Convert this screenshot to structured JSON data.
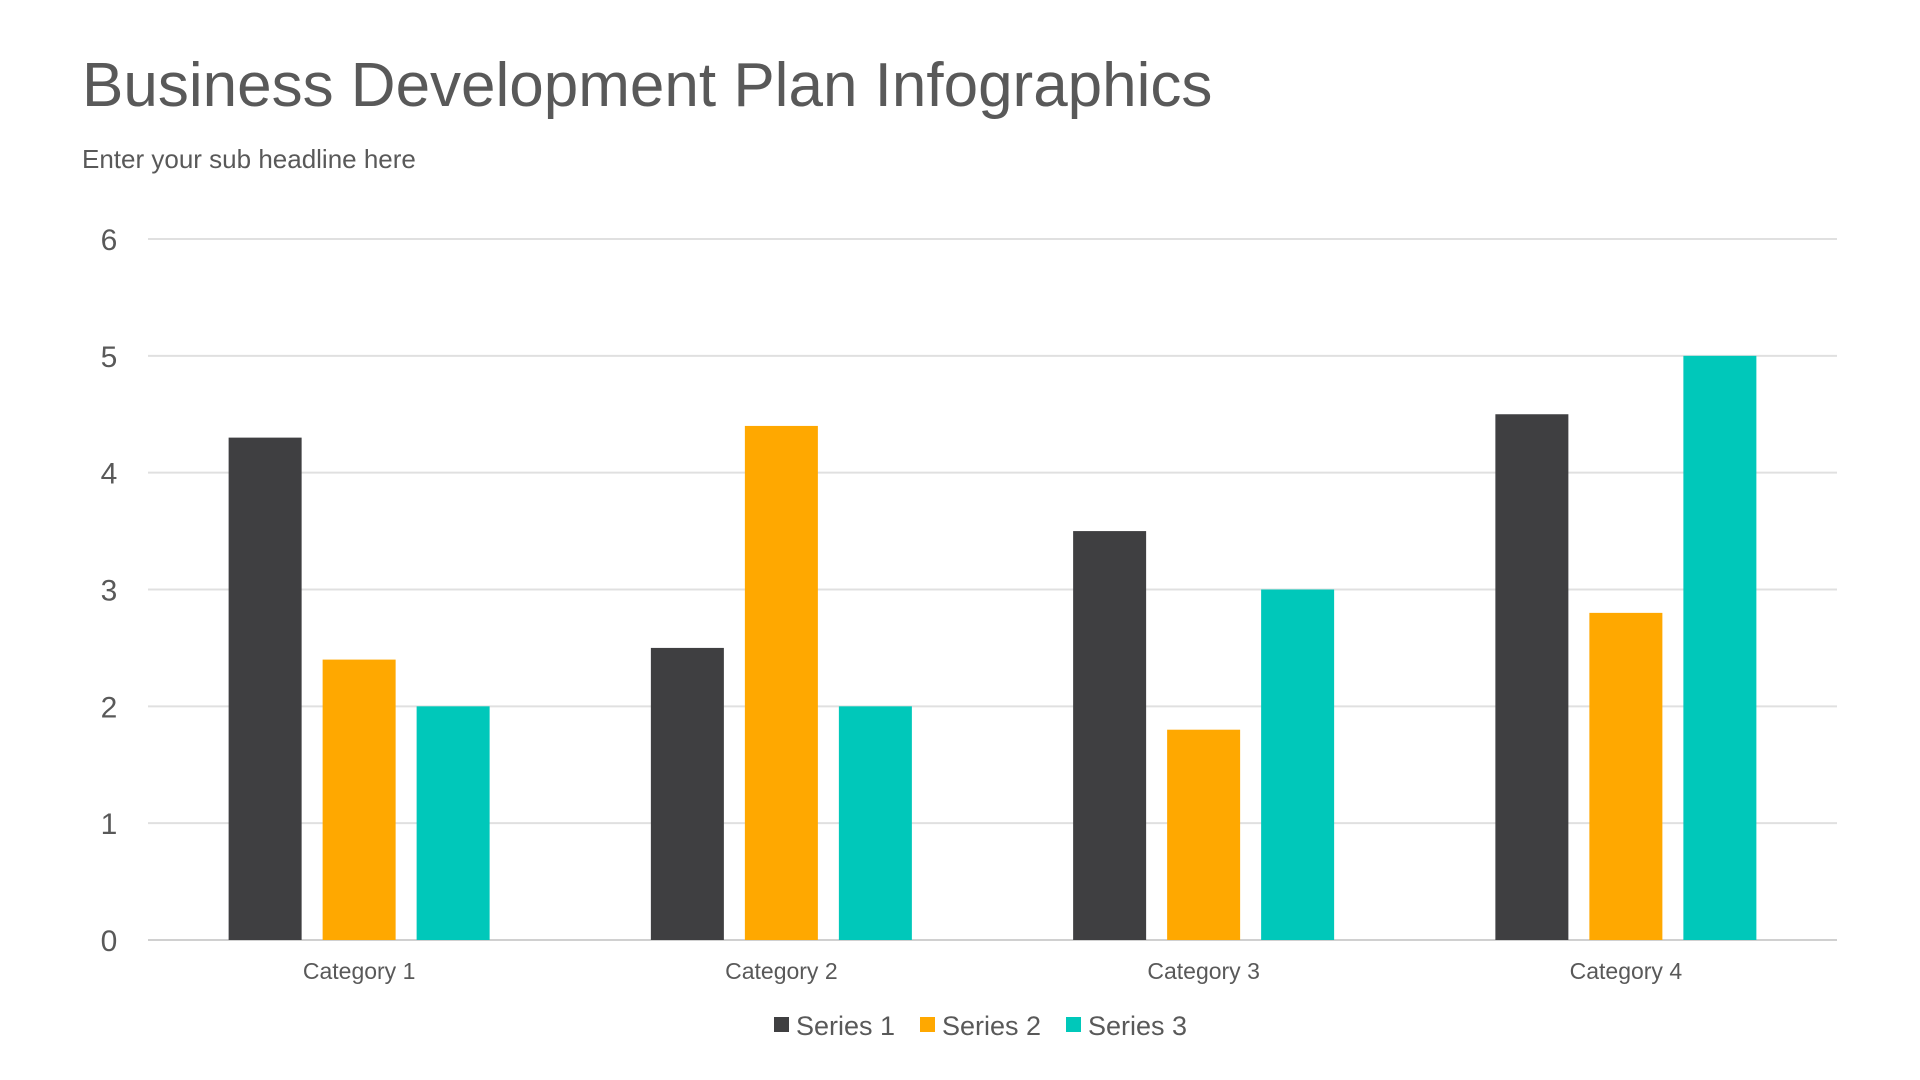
{
  "title": "Business Development Plan Infographics",
  "subtitle": "Enter your sub headline here",
  "chart_data": {
    "type": "bar",
    "categories": [
      "Category 1",
      "Category 2",
      "Category 3",
      "Category 4"
    ],
    "series": [
      {
        "name": "Series 1",
        "values": [
          4.3,
          2.5,
          3.5,
          4.5
        ],
        "color": "#3F3F41"
      },
      {
        "name": "Series 2",
        "values": [
          2.4,
          4.4,
          1.8,
          2.8
        ],
        "color": "#FFA800"
      },
      {
        "name": "Series 3",
        "values": [
          2,
          2,
          3,
          5
        ],
        "color": "#00C8BA"
      }
    ],
    "ylim": [
      0,
      6
    ],
    "yticks": [
      "0",
      "1",
      "2",
      "3",
      "4",
      "5",
      "6"
    ],
    "grid": true,
    "legend": "bottom"
  }
}
